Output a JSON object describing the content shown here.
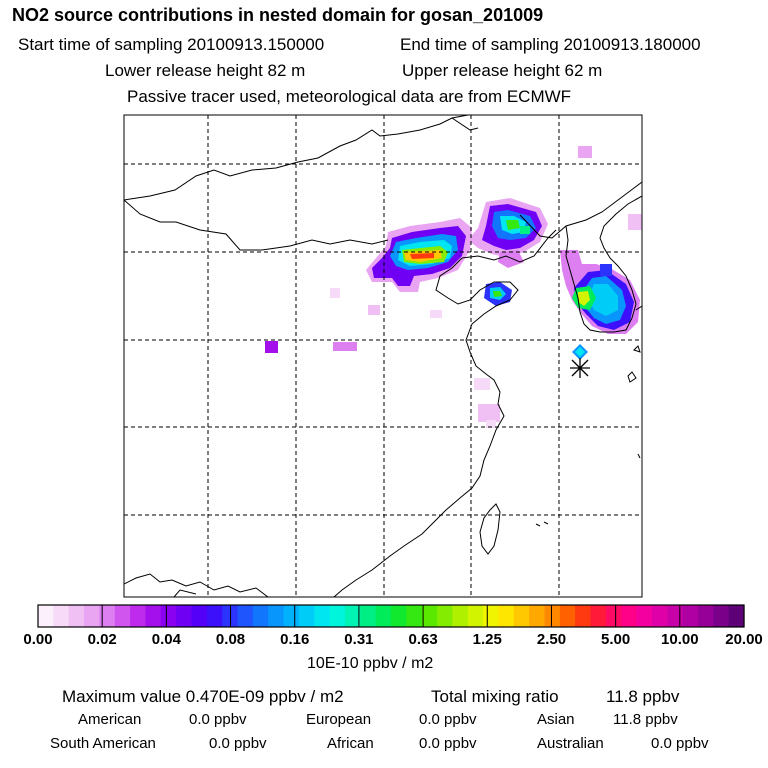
{
  "title": "NO2 source contributions in nested domain for gosan_201009",
  "sampling": {
    "start": "Start time of sampling 20100913.150000",
    "end": "End time of sampling 20100913.180000"
  },
  "release": {
    "lower": "Lower release height   82 m",
    "upper": "Upper release height   62 m"
  },
  "note": "Passive tracer used, meteorological data are from ECMWF",
  "colorbar": {
    "ticks": [
      "0.00",
      "0.02",
      "0.04",
      "0.08",
      "0.16",
      "0.31",
      "0.63",
      "1.25",
      "2.50",
      "5.00",
      "10.00",
      "20.00"
    ],
    "unit_label": "10E-10 ppbv / m2",
    "colors": [
      "#fdf0fd",
      "#f7d9f8",
      "#f0c0f5",
      "#e9a5f2",
      "#dd7ff0",
      "#cf55ee",
      "#be2bec",
      "#a310ec",
      "#8a00f0",
      "#6f00f4",
      "#5400f8",
      "#3d10fb",
      "#2b33fc",
      "#1e55fd",
      "#1276fd",
      "#0896fc",
      "#00b2fb",
      "#00cdf7",
      "#00e6f0",
      "#00f5dd",
      "#00f3b3",
      "#00ef85",
      "#00ec58",
      "#10e92d",
      "#35e812",
      "#5ae800",
      "#83ec00",
      "#aef000",
      "#d2f400",
      "#f0f400",
      "#ffe600",
      "#ffc800",
      "#ffa800",
      "#ff8800",
      "#ff6000",
      "#ff3a10",
      "#ff1a3a",
      "#ff0a64",
      "#ff0088",
      "#f500a0",
      "#e000a8",
      "#c800a8",
      "#b000a4",
      "#960098",
      "#7a008a",
      "#5e0076"
    ]
  },
  "stats": {
    "maximum": "Maximum value  0.470E-09 ppbv / m2",
    "total": "Total mixing ratio",
    "total_value": "11.8 ppbv"
  },
  "regions": [
    {
      "name": "American",
      "value": "0.0 ppbv"
    },
    {
      "name": "European",
      "value": "0.0 ppbv"
    },
    {
      "name": "Asian",
      "value": "11.8 ppbv"
    },
    {
      "name": "South American",
      "value": "0.0 ppbv"
    },
    {
      "name": "African",
      "value": "0.0 ppbv"
    },
    {
      "name": "Australian",
      "value": "0.0 ppbv"
    }
  ],
  "chart_data": {
    "type": "heatmap",
    "title": "NO2 source contributions in nested domain for gosan_201009",
    "scale": [
      0.0,
      0.02,
      0.04,
      0.08,
      0.16,
      0.31,
      0.63,
      1.25,
      2.5,
      5.0,
      10.0,
      20.0
    ],
    "units": "10E-10 ppbv / m2",
    "grid": true,
    "max_value": "0.470E-09 ppbv / m2",
    "total_mixing_ratio_ppbv": 11.8,
    "receptor": "gosan"
  }
}
